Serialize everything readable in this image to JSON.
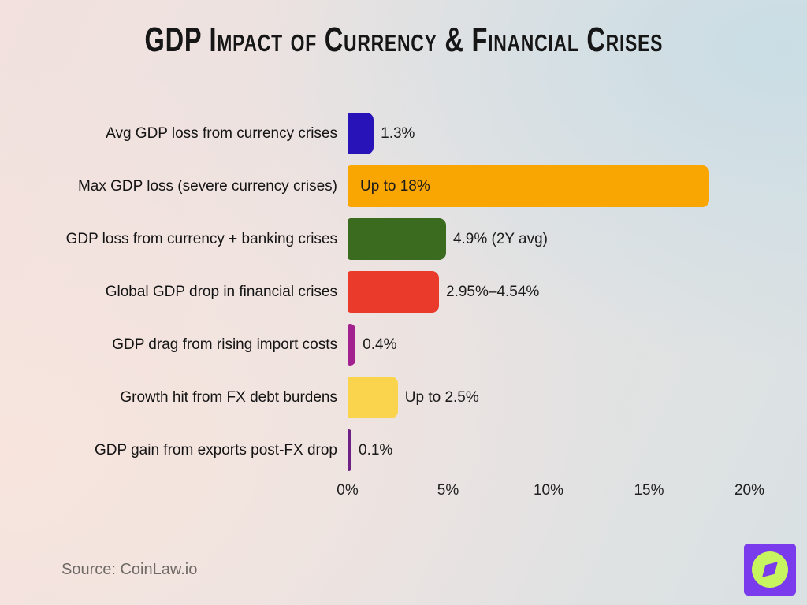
{
  "title": "GDP Impact of Currency & Financial Crises",
  "source": "Source: CoinLaw.io",
  "chart_data": {
    "type": "bar",
    "orientation": "horizontal",
    "title": "GDP Impact of Currency & Financial Crises",
    "xlabel": "",
    "ylabel": "",
    "xlim": [
      0,
      20
    ],
    "x_ticks": [
      "0%",
      "5%",
      "10%",
      "15%",
      "20%"
    ],
    "grid": false,
    "legend": false,
    "rows": [
      {
        "label": "Avg GDP loss from currency crises",
        "value_label": "1.3%",
        "plot_pct": 1.3,
        "color": "#2713B8",
        "label_inside": false
      },
      {
        "label": "Max GDP loss (severe currency crises)",
        "value_label": "Up to 18%",
        "plot_pct": 18,
        "color": "#F9A602",
        "label_inside": true
      },
      {
        "label": "GDP loss from currency + banking crises",
        "value_label": "4.9% (2Y avg)",
        "plot_pct": 4.9,
        "color": "#3A6B1E",
        "label_inside": false
      },
      {
        "label": "Global GDP drop in financial crises",
        "value_label": "2.95%–4.54%",
        "plot_pct": 4.55,
        "color": "#E93A2B",
        "label_inside": false
      },
      {
        "label": "GDP drag from rising import costs",
        "value_label": "0.4%",
        "plot_pct": 0.4,
        "color": "#A2218E",
        "label_inside": false
      },
      {
        "label": "Growth hit from FX debt burdens",
        "value_label": "Up to 2.5%",
        "plot_pct": 2.5,
        "color": "#F9D44C",
        "label_inside": false
      },
      {
        "label": "GDP gain from exports post-FX drop",
        "value_label": "0.1%",
        "plot_pct": 0.1,
        "color": "#6E2184",
        "label_inside": false
      }
    ]
  },
  "logo": {
    "name": "coinlaw-compass-logo",
    "bg": "#7A3BEC",
    "circle": "#C7F55F",
    "needle": "#7A3BEC"
  }
}
